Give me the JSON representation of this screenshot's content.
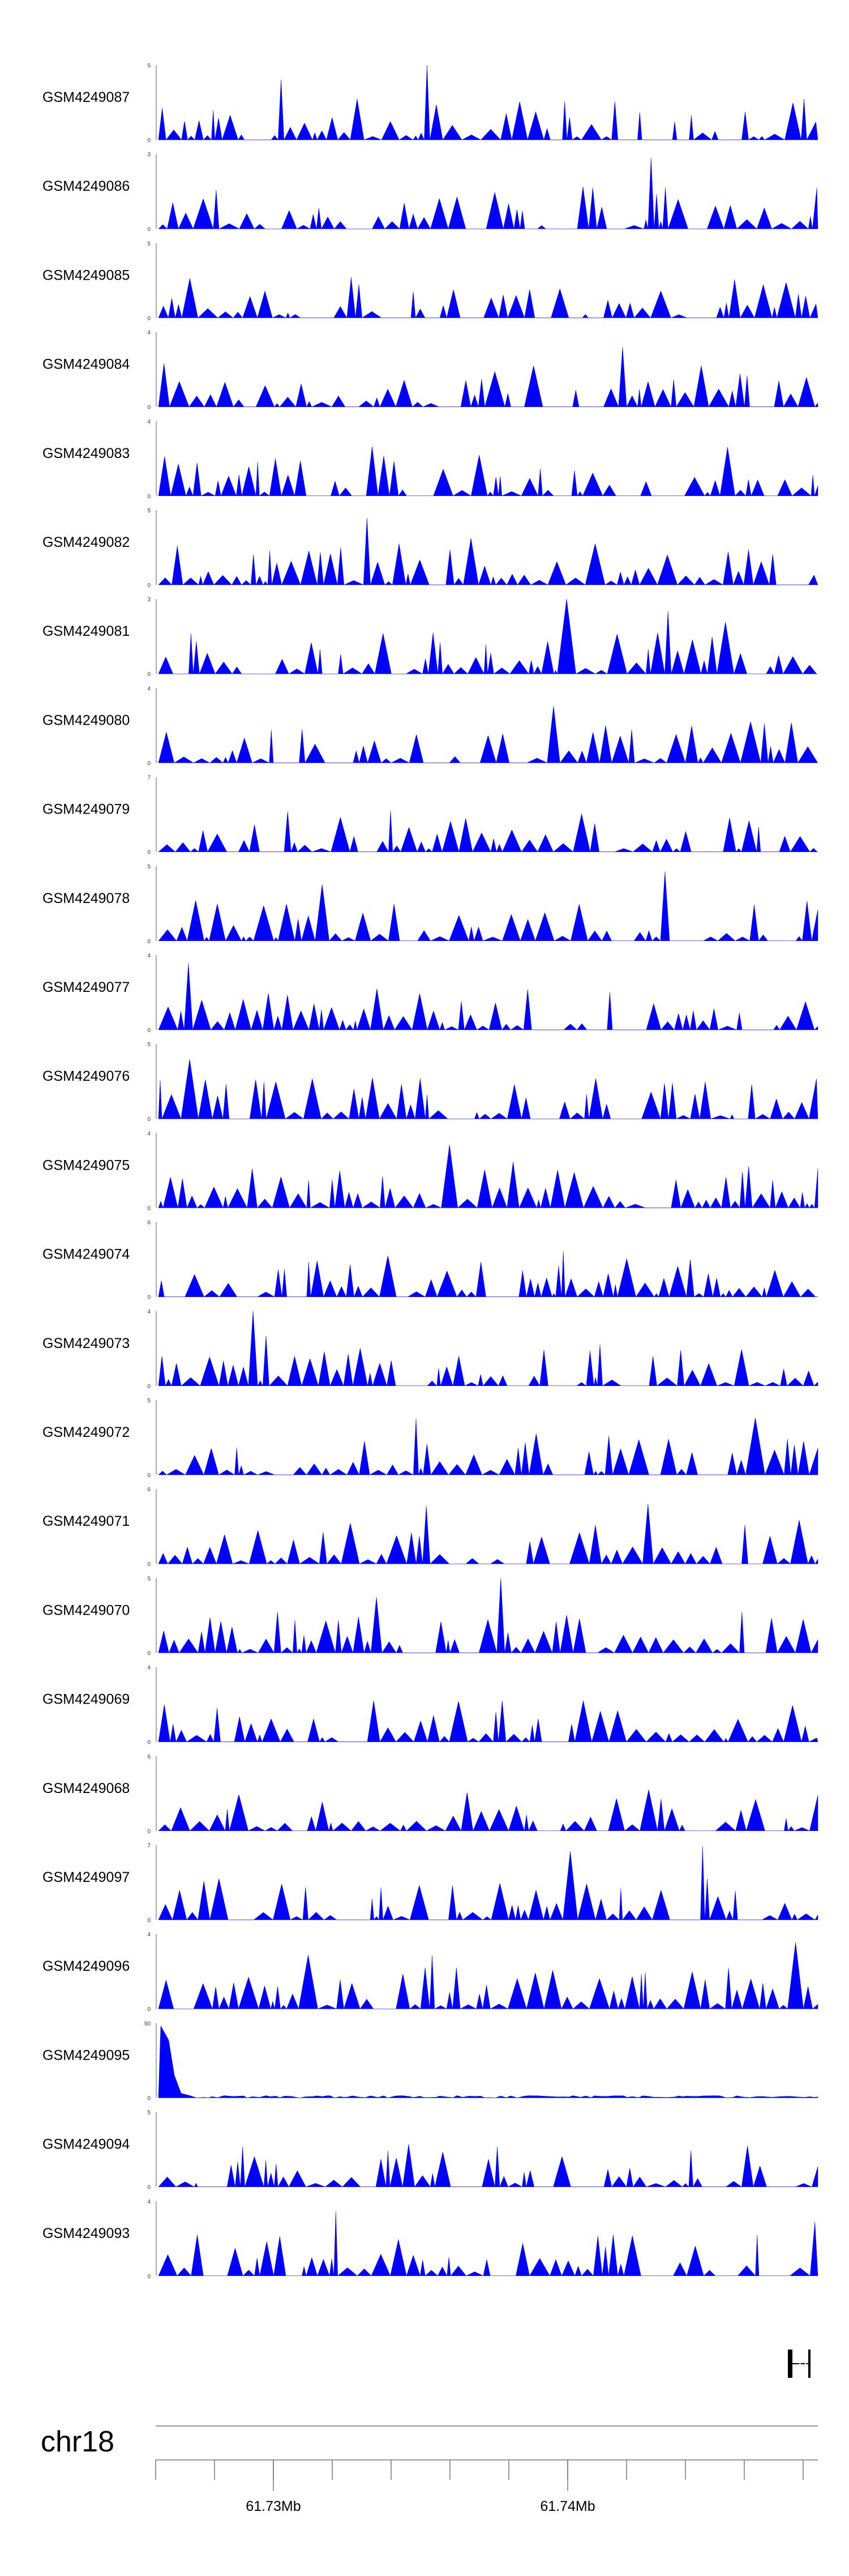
{
  "chart_data": {
    "type": "area",
    "chromosome": "chr18",
    "genomic_axis": {
      "labeled_ticks": [
        {
          "position": 61730000,
          "label": "61.73Mb"
        },
        {
          "position": 61740000,
          "label": "61.74Mb"
        }
      ],
      "minor_tick_step": 2000,
      "range": [
        61726000,
        61748500
      ]
    },
    "fill_color": "#0000ff",
    "tracks": [
      {
        "name": "GSM4249087",
        "ymax": 5
      },
      {
        "name": "GSM4249086",
        "ymax": 3
      },
      {
        "name": "GSM4249085",
        "ymax": 5
      },
      {
        "name": "GSM4249084",
        "ymax": 4
      },
      {
        "name": "GSM4249083",
        "ymax": 4
      },
      {
        "name": "GSM4249082",
        "ymax": 5
      },
      {
        "name": "GSM4249081",
        "ymax": 3
      },
      {
        "name": "GSM4249080",
        "ymax": 4
      },
      {
        "name": "GSM4249079",
        "ymax": 7
      },
      {
        "name": "GSM4249078",
        "ymax": 5
      },
      {
        "name": "GSM4249077",
        "ymax": 4
      },
      {
        "name": "GSM4249076",
        "ymax": 5
      },
      {
        "name": "GSM4249075",
        "ymax": 4
      },
      {
        "name": "GSM4249074",
        "ymax": 6
      },
      {
        "name": "GSM4249073",
        "ymax": 4
      },
      {
        "name": "GSM4249072",
        "ymax": 5
      },
      {
        "name": "GSM4249071",
        "ymax": 6
      },
      {
        "name": "GSM4249070",
        "ymax": 5
      },
      {
        "name": "GSM4249069",
        "ymax": 4
      },
      {
        "name": "GSM4249068",
        "ymax": 6
      },
      {
        "name": "GSM4249097",
        "ymax": 7
      },
      {
        "name": "GSM4249096",
        "ymax": 4
      },
      {
        "name": "GSM4249095",
        "ymax": 50
      },
      {
        "name": "GSM4249094",
        "ymax": 5
      },
      {
        "name": "GSM4249093",
        "ymax": 4
      }
    ]
  }
}
